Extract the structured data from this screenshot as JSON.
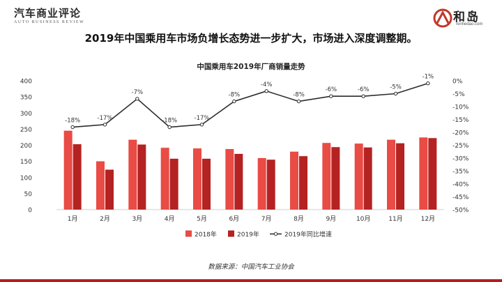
{
  "header": {
    "publisher_name": "汽车商业评论",
    "publisher_subtitle": "AUTO BUSINESS REVIEW",
    "logo_name": "和岛",
    "logo_url": "renhedao.com"
  },
  "headline": "2019年中国乘用车市场负增长态势进一步扩大，市场进入深度调整期。",
  "source": "数据来源：中国汽车工业协会",
  "colors": {
    "bar_2018": "#e94b45",
    "bar_2019": "#b52222",
    "line": "#2b2b2b",
    "brand_red": "#c0392b"
  },
  "chart_data": {
    "type": "bar",
    "title": "中国乘用车2019年厂商销量走势",
    "categories": [
      "1月",
      "2月",
      "3月",
      "4月",
      "5月",
      "6月",
      "7月",
      "8月",
      "9月",
      "10月",
      "11月",
      "12月"
    ],
    "series": [
      {
        "name": "2018年",
        "type": "bar",
        "axis": "left",
        "values": [
          245,
          150,
          217,
          192,
          190,
          188,
          160,
          180,
          207,
          205,
          217,
          224
        ]
      },
      {
        "name": "2019年",
        "type": "bar",
        "axis": "left",
        "values": [
          203,
          124,
          202,
          158,
          158,
          173,
          155,
          166,
          194,
          193,
          206,
          222
        ]
      },
      {
        "name": "2019年同比增速",
        "type": "line",
        "axis": "right",
        "values": [
          -18,
          -17,
          -7,
          -18,
          -17,
          -8,
          -4,
          -8,
          -6,
          -6,
          -5,
          -1
        ],
        "labels": [
          "-18%",
          "-17%",
          "-7%",
          "-18%",
          "-17%",
          "-8%",
          "-4%",
          "-8%",
          "-6%",
          "-6%",
          "-5%",
          "-1%"
        ]
      }
    ],
    "y_left": {
      "ticks": [
        "0",
        "50",
        "100",
        "150",
        "200",
        "250",
        "300",
        "350",
        "400"
      ],
      "lim": [
        0,
        400
      ]
    },
    "y_right": {
      "ticks": [
        "0%",
        "-5%",
        "-10%",
        "-15%",
        "-20%",
        "-25%",
        "-30%",
        "-35%",
        "-40%",
        "-45%",
        "-50%"
      ],
      "lim": [
        -50,
        0
      ]
    },
    "legend_position": "bottom",
    "grid": false
  }
}
